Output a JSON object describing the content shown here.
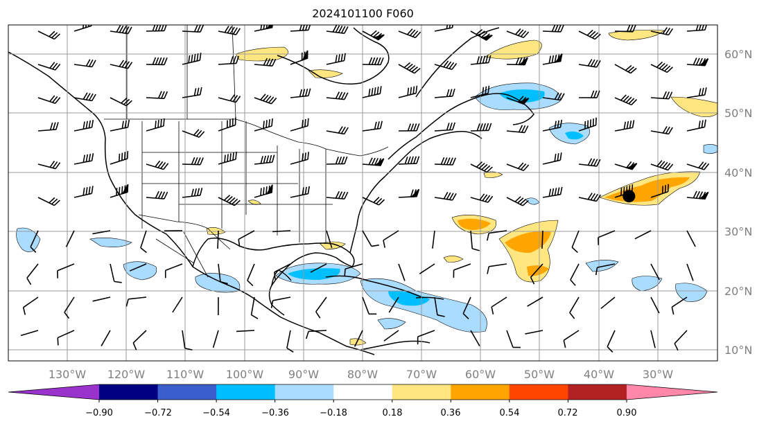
{
  "title": "2024101100 F060",
  "map": {
    "lon_labels": [
      "130°W",
      "120°W",
      "110°W",
      "100°W",
      "90°W",
      "80°W",
      "70°W",
      "60°W",
      "50°W",
      "40°W",
      "30°W"
    ],
    "lat_labels": [
      "60°N",
      "50°N",
      "40°N",
      "30°N",
      "20°N",
      "10°N"
    ],
    "gridlines": "on",
    "marker": {
      "lon": -35,
      "lat": 36,
      "label": ""
    },
    "shading": [
      {
        "region": "north Atlantic east of Newfoundland",
        "range": "-0.54 to -0.18"
      },
      {
        "region": "Gulf of Mexico / northwest Caribbean",
        "range": "-0.54 to -0.18"
      },
      {
        "region": "central Caribbean Sea",
        "range": "-0.54 to -0.18"
      },
      {
        "region": "central Atlantic 30N-45W",
        "range": "0.18 to 0.54"
      },
      {
        "region": "east Atlantic near 36N 35W",
        "range": "0.18 to 0.54"
      },
      {
        "region": "Atlantic near 31N 62W",
        "range": "0.18 to 0.54"
      }
    ]
  },
  "colorbar": {
    "ticks": [
      "−0.90",
      "−0.72",
      "−0.54",
      "−0.36",
      "−0.18",
      "0.18",
      "0.36",
      "0.54",
      "0.72",
      "0.90"
    ],
    "colors": [
      "#9933cc",
      "#000080",
      "#3a5fcd",
      "#00bfff",
      "#aadcff",
      "#ffffff",
      "#ffe680",
      "#ffa500",
      "#ff4500",
      "#b22222",
      "#ff88aa"
    ],
    "extend": "both"
  }
}
